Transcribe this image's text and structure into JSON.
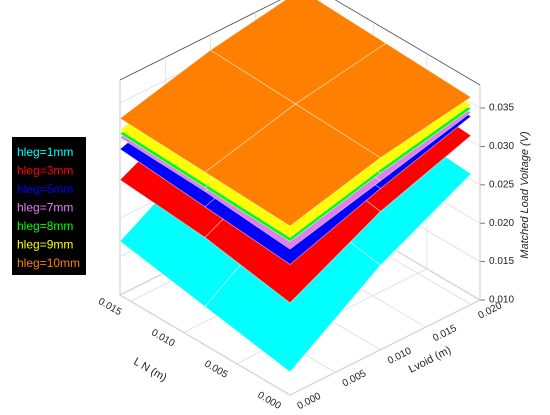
{
  "chart_data": {
    "type": "surface3d",
    "xlabel": "L N (m)",
    "ylabel": "Lvoid (m)",
    "zlabel": "Matched Load Voltage (V)",
    "xlim": [
      0,
      0.016
    ],
    "ylim": [
      0,
      0.021
    ],
    "zlim": [
      0.01,
      0.038
    ],
    "xticks": [
      {
        "value": 0,
        "label": "0.000"
      },
      0.005,
      {
        "value": 0.01,
        "label": "0.010"
      },
      0.015
    ],
    "yticks": [
      {
        "value": 0,
        "label": "0.000"
      },
      0.005,
      {
        "value": 0.01,
        "label": "0.010"
      },
      0.015,
      {
        "value": 0.02,
        "label": "0.020"
      }
    ],
    "zticks": [
      {
        "value": 0.01,
        "label": "0.010"
      },
      0.015,
      {
        "value": 0.02,
        "label": "0.020"
      },
      0.025,
      {
        "value": 0.03,
        "label": "0.030"
      },
      0.035
    ],
    "x": [
      0,
      0.008,
      0.016
    ],
    "y": [
      0,
      0.01,
      0.02
    ],
    "series": [
      {
        "name": "hleg=1mm",
        "color": "#00ffff",
        "values": [
          [
            0.013,
            0.021,
            0.027
          ],
          [
            0.015,
            0.023,
            0.028
          ],
          [
            0.017,
            0.024,
            0.029
          ]
        ]
      },
      {
        "name": "hleg=3mm",
        "color": "#ff0000",
        "values": [
          [
            0.022,
            0.028,
            0.032
          ],
          [
            0.024,
            0.03,
            0.033
          ],
          [
            0.025,
            0.031,
            0.034
          ]
        ]
      },
      {
        "name": "hleg=5mm",
        "color": "#0000ff",
        "values": [
          [
            0.027,
            0.031,
            0.0345
          ],
          [
            0.028,
            0.032,
            0.035
          ],
          [
            0.029,
            0.033,
            0.0355
          ]
        ]
      },
      {
        "name": "hleg=7mm",
        "color": "#e080f0",
        "values": [
          [
            0.029,
            0.032,
            0.035
          ],
          [
            0.03,
            0.033,
            0.0355
          ],
          [
            0.0305,
            0.0335,
            0.036
          ]
        ]
      },
      {
        "name": "hleg=8mm",
        "color": "#00ff00",
        "values": [
          [
            0.03,
            0.033,
            0.0355
          ],
          [
            0.0305,
            0.0335,
            0.036
          ],
          [
            0.031,
            0.034,
            0.0365
          ]
        ]
      },
      {
        "name": "hleg=9mm",
        "color": "#ffff00",
        "values": [
          [
            0.0305,
            0.0335,
            0.036
          ],
          [
            0.031,
            0.034,
            0.0365
          ],
          [
            0.0315,
            0.0345,
            0.037
          ]
        ]
      },
      {
        "name": "hleg=10mm",
        "color": "#ff8000",
        "values": [
          [
            0.032,
            0.035,
            0.037
          ],
          [
            0.0325,
            0.0355,
            0.0375
          ],
          [
            0.033,
            0.036,
            0.038
          ]
        ]
      }
    ]
  }
}
